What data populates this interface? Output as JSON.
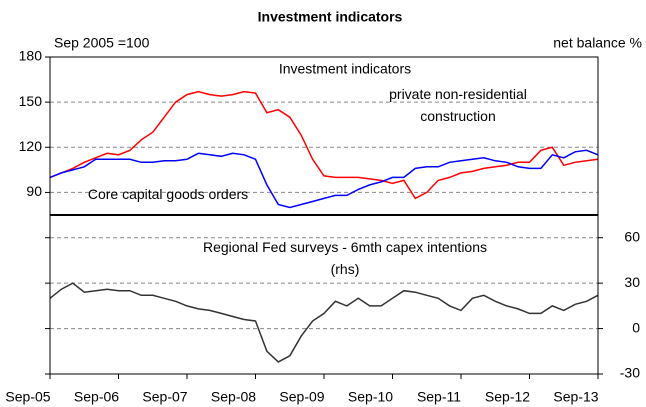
{
  "chart_data": [
    {
      "type": "line",
      "title": "Investment indicators",
      "subtitle": "Investment indicators",
      "ylabel": "Sep 2005 =100",
      "x": [
        "2005-09",
        "2005-11",
        "2006-01",
        "2006-03",
        "2006-05",
        "2006-07",
        "2006-09",
        "2006-11",
        "2007-01",
        "2007-03",
        "2007-05",
        "2007-07",
        "2007-09",
        "2007-11",
        "2008-01",
        "2008-03",
        "2008-05",
        "2008-07",
        "2008-09",
        "2008-11",
        "2009-01",
        "2009-03",
        "2009-05",
        "2009-07",
        "2009-09",
        "2009-11",
        "2010-01",
        "2010-03",
        "2010-05",
        "2010-07",
        "2010-09",
        "2010-11",
        "2011-01",
        "2011-03",
        "2011-05",
        "2011-07",
        "2011-09",
        "2011-11",
        "2012-01",
        "2012-03",
        "2012-05",
        "2012-07",
        "2012-09",
        "2012-11",
        "2013-01",
        "2013-03",
        "2013-05",
        "2013-07",
        "2013-09"
      ],
      "xlim": [
        "2005-09",
        "2013-09"
      ],
      "ylim": [
        75,
        180
      ],
      "yticks": [
        90,
        120,
        150,
        180
      ],
      "grid": true,
      "series": [
        {
          "name": "private non-residential\nconstruction",
          "color": "#ff0000",
          "values": [
            100,
            103,
            106,
            110,
            113,
            116,
            115,
            118,
            125,
            130,
            140,
            150,
            155,
            157,
            155,
            154,
            155,
            157,
            156,
            143,
            145,
            140,
            128,
            112,
            101,
            100,
            100,
            100,
            99,
            98,
            96,
            98,
            86,
            90,
            98,
            100,
            103,
            104,
            106,
            107,
            108,
            110,
            110,
            118,
            120,
            108,
            110,
            111,
            112
          ]
        },
        {
          "name": "Core capital goods orders",
          "color": "#0000ff",
          "values": [
            100,
            103,
            105,
            107,
            112,
            112,
            112,
            112,
            110,
            110,
            111,
            111,
            112,
            116,
            115,
            114,
            116,
            115,
            112,
            95,
            82,
            80,
            82,
            84,
            86,
            88,
            88,
            92,
            95,
            97,
            100,
            100,
            106,
            107,
            107,
            110,
            111,
            112,
            113,
            111,
            110,
            107,
            106,
            106,
            115,
            113,
            117,
            118,
            115
          ]
        }
      ]
    },
    {
      "type": "line",
      "ylabel": "net balance %",
      "yaxis_side": "right",
      "x": [
        "2005-09",
        "2005-11",
        "2006-01",
        "2006-03",
        "2006-05",
        "2006-07",
        "2006-09",
        "2006-11",
        "2007-01",
        "2007-03",
        "2007-05",
        "2007-07",
        "2007-09",
        "2007-11",
        "2008-01",
        "2008-03",
        "2008-05",
        "2008-07",
        "2008-09",
        "2008-11",
        "2009-01",
        "2009-03",
        "2009-05",
        "2009-07",
        "2009-09",
        "2009-11",
        "2010-01",
        "2010-03",
        "2010-05",
        "2010-07",
        "2010-09",
        "2010-11",
        "2011-01",
        "2011-03",
        "2011-05",
        "2011-07",
        "2011-09",
        "2011-11",
        "2012-01",
        "2012-03",
        "2012-05",
        "2012-07",
        "2012-09",
        "2012-11",
        "2013-01",
        "2013-03",
        "2013-05",
        "2013-07",
        "2013-09"
      ],
      "xlim": [
        "2005-09",
        "2013-09"
      ],
      "xticks": [
        {
          "value": "2005-09",
          "label": "Sep-05"
        },
        {
          "value": "2006-09",
          "label": "Sep-06"
        },
        {
          "value": "2007-09",
          "label": "Sep-07"
        },
        {
          "value": "2008-09",
          "label": "Sep-08"
        },
        {
          "value": "2009-09",
          "label": "Sep-09"
        },
        {
          "value": "2010-09",
          "label": "Sep-10"
        },
        {
          "value": "2011-09",
          "label": "Sep-11"
        },
        {
          "value": "2012-09",
          "label": "Sep-12"
        },
        {
          "value": "2013-09",
          "label": "Sep-13"
        }
      ],
      "ylim": [
        -30,
        75
      ],
      "yticks": [
        -30,
        0,
        30,
        60
      ],
      "grid": true,
      "series": [
        {
          "name": "Regional Fed surveys - 6mth capex intentions\n(rhs)",
          "color": "#333333",
          "values": [
            20,
            26,
            30,
            24,
            25,
            26,
            25,
            25,
            22,
            22,
            20,
            18,
            15,
            13,
            12,
            10,
            8,
            6,
            5,
            -15,
            -22,
            -18,
            -5,
            5,
            10,
            18,
            15,
            20,
            15,
            15,
            20,
            25,
            24,
            22,
            20,
            15,
            12,
            20,
            22,
            18,
            15,
            13,
            10,
            10,
            15,
            12,
            16,
            18,
            22
          ]
        }
      ]
    }
  ]
}
